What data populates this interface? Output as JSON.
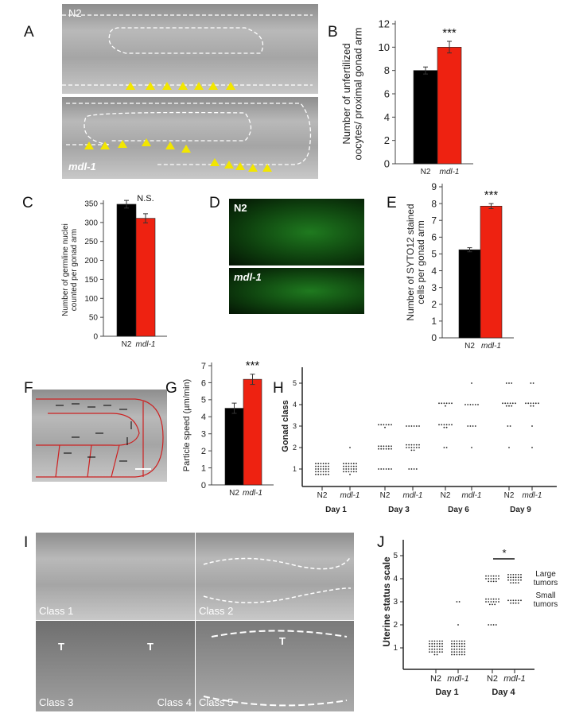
{
  "panels": {
    "A": "A",
    "B": "B",
    "C": "C",
    "D": "D",
    "E": "E",
    "F": "F",
    "G": "G",
    "H": "H",
    "I": "I",
    "J": "J"
  },
  "panel_a": {
    "top_label": "N2",
    "bottom_label": "mdl-1"
  },
  "panel_d": {
    "top_label": "N2",
    "bottom_label": "mdl-1"
  },
  "panel_i": {
    "classes": [
      "Class 1",
      "Class 2",
      "Class 3",
      "Class 4",
      "Class 5"
    ],
    "tumor_marker": "T"
  },
  "colors": {
    "N2": "#000000",
    "mdl-1": "#ee2211",
    "triangle": "#f2e600",
    "fig_f_lines": "#cc2222"
  },
  "chart_data": [
    {
      "panel": "B",
      "type": "bar",
      "categories": [
        "N2",
        "mdl-1"
      ],
      "values": [
        8.0,
        10.0
      ],
      "errors": [
        0.3,
        0.5
      ],
      "ylabel": "Number of unfertilized oocytes/ proximal gonad arm",
      "ylim": [
        0,
        12
      ],
      "yticks": [
        0,
        2,
        4,
        6,
        8,
        10,
        12
      ],
      "annotation": "***"
    },
    {
      "panel": "C",
      "type": "bar",
      "categories": [
        "N2",
        "mdl-1"
      ],
      "values": [
        348,
        311
      ],
      "errors": [
        10,
        12
      ],
      "ylabel": "Number of germline nuclei counted per gonad arm",
      "ylim": [
        0,
        350
      ],
      "yticks": [
        0,
        50,
        100,
        150,
        200,
        250,
        300,
        350
      ],
      "annotation": "N.S."
    },
    {
      "panel": "E",
      "type": "bar",
      "categories": [
        "N2",
        "mdl-1"
      ],
      "values": [
        5.25,
        7.85
      ],
      "errors": [
        0.12,
        0.15
      ],
      "ylabel": "Number of SYTO12 stained cells per gonad arm",
      "ylim": [
        0,
        9
      ],
      "yticks": [
        0,
        1,
        2,
        3,
        4,
        5,
        6,
        7,
        8,
        9
      ],
      "annotation": "***"
    },
    {
      "panel": "G",
      "type": "bar",
      "categories": [
        "N2",
        "mdl-1"
      ],
      "values": [
        4.5,
        6.2
      ],
      "errors": [
        0.3,
        0.3
      ],
      "ylabel": "Particle speed (µm/min)",
      "ylim": [
        0,
        7
      ],
      "yticks": [
        0,
        1,
        2,
        3,
        4,
        5,
        6,
        7
      ],
      "annotation": "***"
    },
    {
      "panel": "H",
      "type": "scatter",
      "ylabel": "Gonad class",
      "yticks": [
        1,
        2,
        3,
        4,
        5
      ],
      "groups": [
        {
          "x": "N2",
          "day": "Day 1",
          "counts": {
            "1": 30
          }
        },
        {
          "x": "mdl-1",
          "day": "Day 1",
          "counts": {
            "1": 25,
            "2": 1
          }
        },
        {
          "x": "N2",
          "day": "Day 3",
          "counts": {
            "1": 6,
            "2": 12,
            "3": 7
          }
        },
        {
          "x": "mdl-1",
          "day": "Day 3",
          "counts": {
            "1": 4,
            "2": 14,
            "3": 6
          }
        },
        {
          "x": "N2",
          "day": "Day 6",
          "counts": {
            "2": 2,
            "3": 8,
            "4": 7
          }
        },
        {
          "x": "mdl-1",
          "day": "Day 6",
          "counts": {
            "2": 1,
            "3": 4,
            "4": 6,
            "5": 1
          }
        },
        {
          "x": "N2",
          "day": "Day 9",
          "counts": {
            "2": 1,
            "3": 2,
            "4": 9,
            "5": 3
          }
        },
        {
          "x": "mdl-1",
          "day": "Day 9",
          "counts": {
            "2": 1,
            "3": 1,
            "4": 8,
            "5": 2
          }
        }
      ],
      "days": [
        "Day 1",
        "Day 3",
        "Day 6",
        "Day 9"
      ]
    },
    {
      "panel": "J",
      "type": "scatter",
      "ylabel": "Uterine status scale",
      "yticks": [
        1,
        2,
        3,
        4,
        5
      ],
      "groups": [
        {
          "x": "N2",
          "day": "Day 1",
          "counts": {
            "1": 32
          }
        },
        {
          "x": "mdl-1",
          "day": "Day 1",
          "counts": {
            "1": 36,
            "2": 1,
            "3": 2
          }
        },
        {
          "x": "N2",
          "day": "Day 4",
          "counts": {
            "2": 4,
            "3": 15,
            "4": 16
          }
        },
        {
          "x": "mdl-1",
          "day": "Day 4",
          "counts": {
            "3": 10,
            "4": 22
          }
        }
      ],
      "days": [
        "Day 1",
        "Day 4"
      ],
      "annotation": "*",
      "labels": {
        "large": "Large tumors",
        "small": "Small tumors"
      }
    }
  ]
}
